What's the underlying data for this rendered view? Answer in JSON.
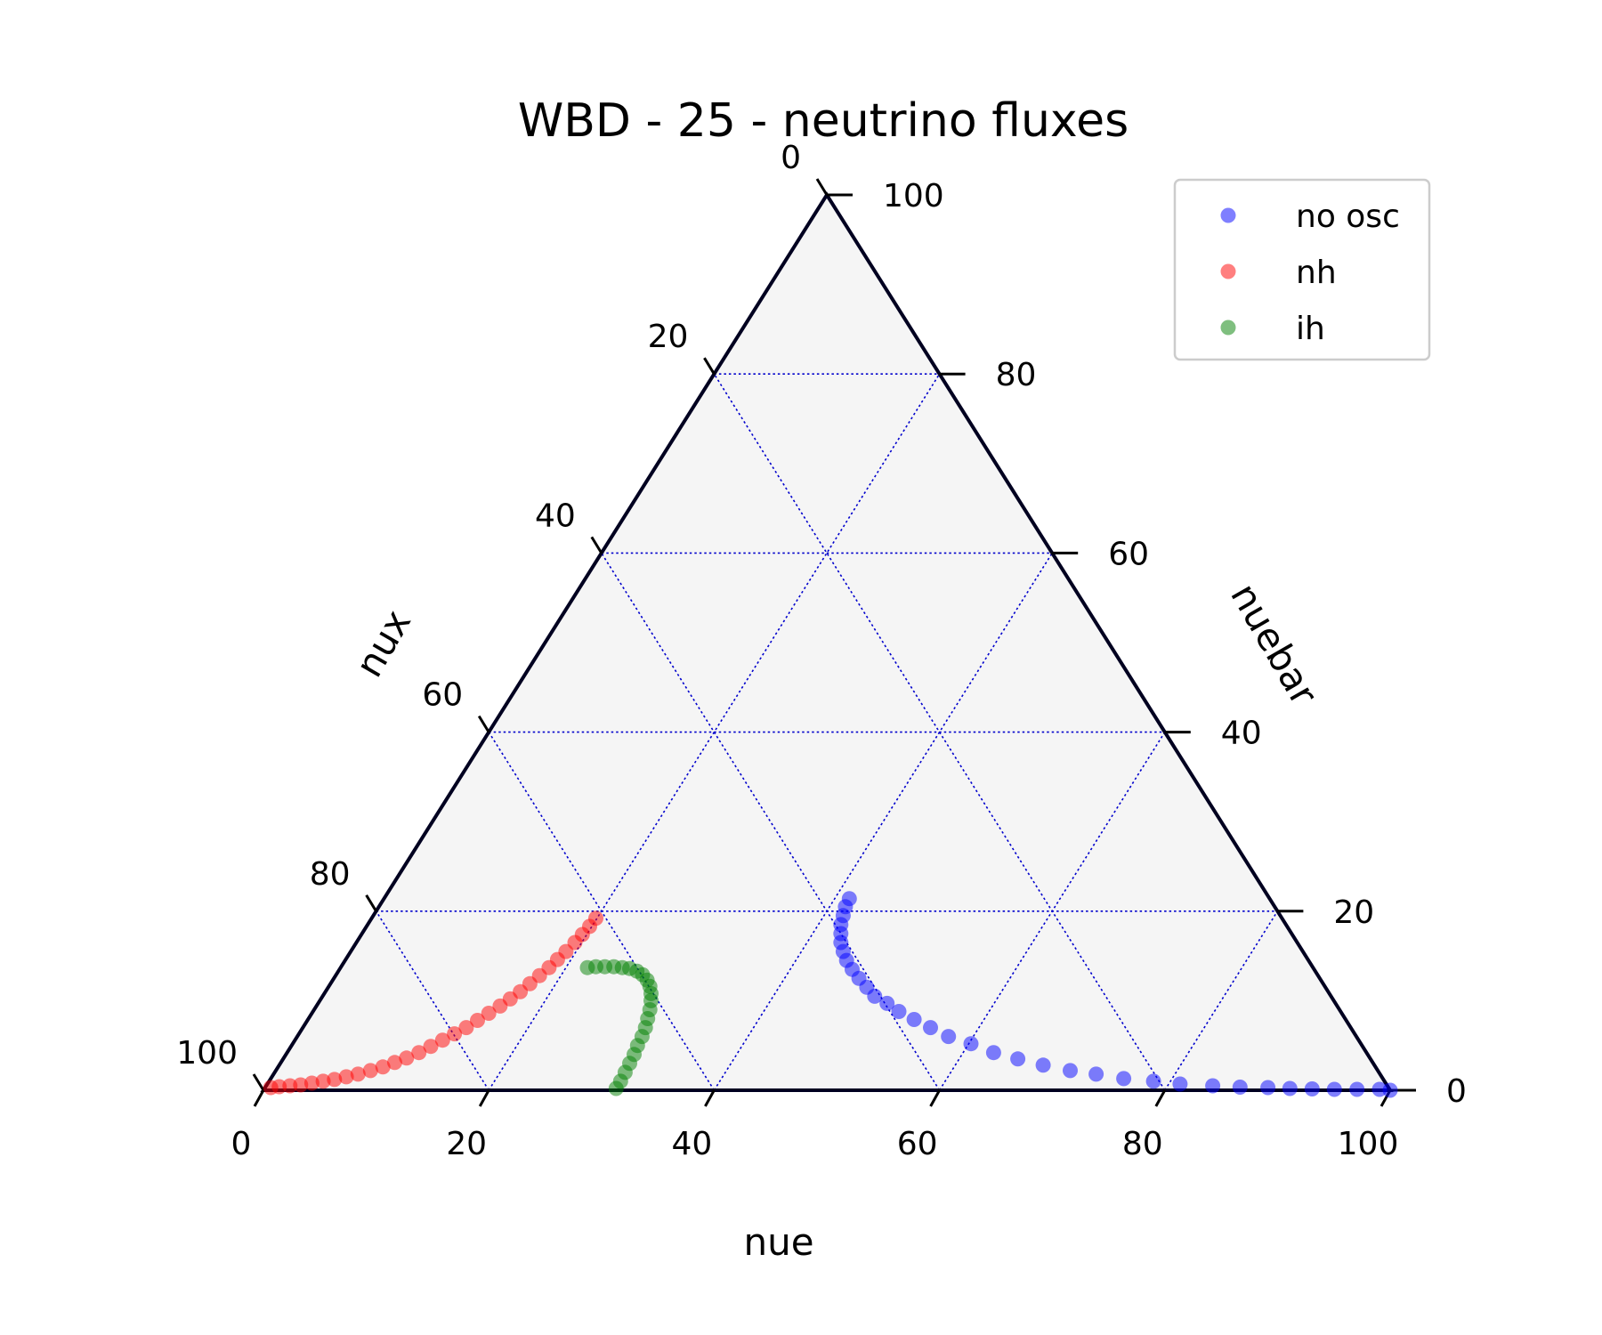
{
  "chart_data": {
    "type": "scatter",
    "subtype": "ternary",
    "title": "WBD - 25 - neutrino fluxes",
    "axes": {
      "bottom": {
        "label": "nue",
        "ticks": [
          "0",
          "20",
          "40",
          "60",
          "80",
          "100"
        ]
      },
      "left": {
        "label": "nux",
        "ticks": [
          "100",
          "80",
          "60",
          "40",
          "20",
          "0"
        ]
      },
      "right": {
        "label": "nuebar",
        "ticks": [
          "0",
          "20",
          "40",
          "60",
          "80",
          "100"
        ]
      }
    },
    "scale": 100,
    "gridlines": [
      20,
      40,
      60,
      80
    ],
    "grid": true,
    "legend": {
      "placement": "top-right",
      "entries": [
        "no osc",
        "nh",
        "ih"
      ]
    },
    "colors": {
      "no osc": "#0000ff",
      "nh": "#ff0000",
      "ih": "#007f00",
      "background": "#f5f5f5",
      "grid": "#0000cc",
      "frame": "#000020"
    },
    "series": [
      {
        "name": "no osc",
        "alpha": 0.5,
        "points": [
          [
            100,
            0
          ],
          [
            99,
            0.1
          ],
          [
            97,
            0.1
          ],
          [
            95,
            0.1
          ],
          [
            93,
            0.15
          ],
          [
            91,
            0.2
          ],
          [
            89,
            0.3
          ],
          [
            86.5,
            0.35
          ],
          [
            84,
            0.5
          ],
          [
            81,
            0.7
          ],
          [
            78.5,
            1.0
          ],
          [
            75.7,
            1.3
          ],
          [
            73,
            1.8
          ],
          [
            70.5,
            2.2
          ],
          [
            67.8,
            2.8
          ],
          [
            65.2,
            3.5
          ],
          [
            62.7,
            4.2
          ],
          [
            60.2,
            5.2
          ],
          [
            57.8,
            6.0
          ],
          [
            55.7,
            7.0
          ],
          [
            53.8,
            7.9
          ],
          [
            52,
            8.8
          ],
          [
            50.5,
            9.7
          ],
          [
            49,
            10.5
          ],
          [
            47.8,
            11.5
          ],
          [
            46.6,
            12.5
          ],
          [
            45.5,
            13.5
          ],
          [
            44.5,
            14.5
          ],
          [
            43.7,
            15.5
          ],
          [
            43,
            16.5
          ],
          [
            42.5,
            17.5
          ],
          [
            42,
            18.5
          ],
          [
            41.7,
            19.5
          ],
          [
            41.4,
            20.5
          ],
          [
            41.3,
            21.4
          ]
        ]
      },
      {
        "name": "nh",
        "alpha": 0.5,
        "points": [
          [
            0.5,
            0.3
          ],
          [
            1.2,
            0.4
          ],
          [
            2.1,
            0.5
          ],
          [
            3.0,
            0.6
          ],
          [
            3.9,
            0.8
          ],
          [
            4.8,
            1.0
          ],
          [
            5.7,
            1.2
          ],
          [
            6.6,
            1.5
          ],
          [
            7.5,
            1.8
          ],
          [
            8.4,
            2.2
          ],
          [
            9.3,
            2.6
          ],
          [
            10.1,
            3.1
          ],
          [
            10.9,
            3.6
          ],
          [
            11.7,
            4.2
          ],
          [
            12.4,
            4.9
          ],
          [
            13.1,
            5.6
          ],
          [
            13.8,
            6.3
          ],
          [
            14.5,
            7.0
          ],
          [
            15.1,
            7.8
          ],
          [
            15.7,
            8.6
          ],
          [
            16.3,
            9.4
          ],
          [
            16.8,
            10.2
          ],
          [
            17.3,
            11.0
          ],
          [
            17.7,
            11.9
          ],
          [
            18.1,
            12.8
          ],
          [
            18.5,
            13.7
          ],
          [
            18.8,
            14.6
          ],
          [
            19.1,
            15.5
          ],
          [
            19.4,
            16.5
          ],
          [
            19.6,
            17.4
          ],
          [
            19.8,
            18.3
          ],
          [
            19.9,
            19.2
          ]
        ]
      },
      {
        "name": "ih",
        "alpha": 0.5,
        "points": [
          [
            31.2,
            0.2
          ],
          [
            31.2,
            1.0
          ],
          [
            31.1,
            2.0
          ],
          [
            31.0,
            3.0
          ],
          [
            30.9,
            4.0
          ],
          [
            30.7,
            5.0
          ],
          [
            30.6,
            6.0
          ],
          [
            30.4,
            7.0
          ],
          [
            30.1,
            8.0
          ],
          [
            29.8,
            9.0
          ],
          [
            29.4,
            10.0
          ],
          [
            29.0,
            10.8
          ],
          [
            28.5,
            11.6
          ],
          [
            27.9,
            12.3
          ],
          [
            27.2,
            12.9
          ],
          [
            26.5,
            13.3
          ],
          [
            25.7,
            13.6
          ],
          [
            25.0,
            13.7
          ],
          [
            24.2,
            13.8
          ],
          [
            23.4,
            13.8
          ],
          [
            22.6,
            13.8
          ],
          [
            21.9,
            13.7
          ]
        ]
      }
    ]
  }
}
